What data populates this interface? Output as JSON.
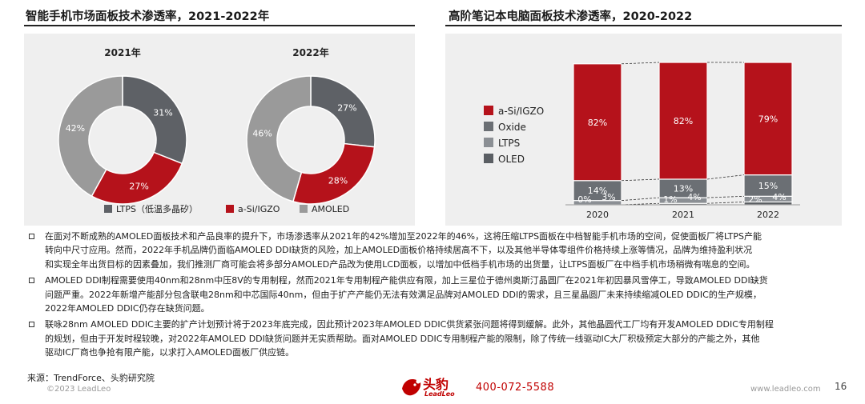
{
  "left_chart": {
    "title": "智能手机市场面板技术渗透率，2021-2022年"
  },
  "right_chart": {
    "title": "高阶笔记本电脑面板技术渗透率，2020-2022"
  },
  "colors": {
    "ltps": "#5e6166",
    "a_si_igzo": "#b5121b",
    "amoled": "#9a9a9a",
    "oxide": "#6b6f74",
    "ltps_bar": "#8b8f94",
    "oled": "#5a5e63",
    "panel": "#efefef"
  },
  "chart_data": [
    {
      "type": "pie",
      "title": "2021年",
      "slices": [
        {
          "name": "LTPS（低温多晶矽）",
          "value": 31,
          "label": "31%"
        },
        {
          "name": "a-Si/IGZO",
          "value": 27,
          "label": "27%"
        },
        {
          "name": "AMOLED",
          "value": 42,
          "label": "42%"
        }
      ]
    },
    {
      "type": "pie",
      "title": "2022年",
      "slices": [
        {
          "name": "LTPS（低温多晶矽）",
          "value": 27,
          "label": "27%"
        },
        {
          "name": "a-Si/IGZO",
          "value": 28,
          "label": "28%"
        },
        {
          "name": "AMOLED",
          "value": 46,
          "label": "46%"
        }
      ],
      "legend": [
        "LTPS（低温多晶矽）",
        "a-Si/IGZO",
        "AMOLED"
      ]
    },
    {
      "type": "bar",
      "stacked": true,
      "categories": [
        "2020",
        "2021",
        "2022"
      ],
      "series": [
        {
          "name": "OLED",
          "values": [
            0,
            1,
            2
          ],
          "labels": [
            "0%",
            "1%",
            "2%"
          ]
        },
        {
          "name": "LTPS",
          "values": [
            3,
            4,
            4
          ],
          "labels": [
            "3%",
            "4%",
            "4%"
          ]
        },
        {
          "name": "Oxide",
          "values": [
            14,
            13,
            15
          ],
          "labels": [
            "14%",
            "13%",
            "15%"
          ]
        },
        {
          "name": "a-Si/IGZO",
          "values": [
            82,
            82,
            79
          ],
          "labels": [
            "82%",
            "82%",
            "79%"
          ]
        }
      ],
      "legend": [
        "a-Si/IGZO",
        "Oxide",
        "LTPS",
        "OLED"
      ],
      "ylim": [
        0,
        100
      ]
    }
  ],
  "bullets": [
    [
      "在面对不断成熟的AMOLED面板技术和产品良率的提升下，市场渗透率从2021年的42%增加至2022年的46%，这将压缩LTPS面板在中档智能手机市场的空间，促使面板厂将LTPS产能",
      "转向中尺寸应用。然而，2022年手机品牌仍面临AMOLED DDI缺货的风险，加上AMOLED面板价格持续居高不下，以及其他半导体零组件价格持续上涨等情况，品牌为维持盈利状况",
      "和实现全年出货目标的因素叠加，我们推测厂商可能会将多部分AMOLED产品改为使用LCD面板，以增加中低档手机市场的出货量，让LTPS面板厂在中档手机市场稍微有喘息的空间。"
    ],
    [
      "AMOLED DDI制程需要使用40nm和28nm中压8V的专用制程，然而2021年专用制程产能供应有限，加上三星位于德州奥斯汀晶圆厂在2021年初因暴风雪停工，导致AMOLED DDI缺货",
      "问题严重。2022年新增产能部分包含联电28nm和中芯国际40nm，但由于扩产产能仍无法有效满足品牌对AMOLED DDI的需求，且三星晶圆厂未来持续缩减OLED DDIC的生产规模，",
      "2022年AMOLED DDIC仍存在缺货问题。"
    ],
    [
      "联咏28nm AMOLED DDIC主要的扩产计划预计将于2023年底完成，因此预计2023年AMOLED DDIC供货紧张问题将得到缓解。此外，其他晶圆代工厂均有开发AMOLED DDIC专用制程",
      "的规划，但由于开发时程较晚，对2022年AMOLED DDI缺货问题并无实质帮助。面对AMOLED DDIC专用制程产能的限制，除了传统一线驱动IC大厂积极预定大部分的产能之外，其他",
      "驱动IC厂商也争抢有限产能，以求打入AMOLED面板厂供应链。"
    ]
  ],
  "footer": {
    "source": "来源：TrendForce、头豹研究院",
    "copyright": "©2023 LeadLeo",
    "logo_cn": "头豹",
    "logo_en": "LeadLeo",
    "phone": "400-072-5588",
    "website": "www.leadleo.com",
    "page": "16"
  }
}
